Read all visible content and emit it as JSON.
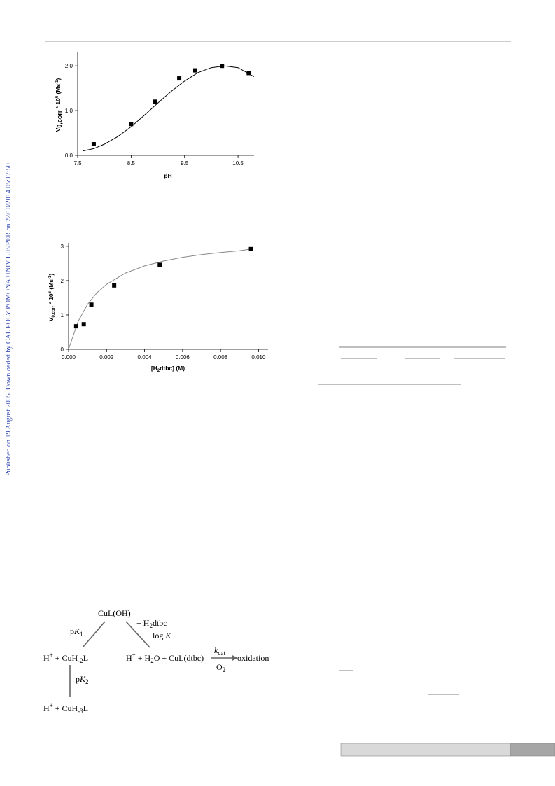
{
  "sidebar": "Published on 19 August 2005. Downloaded by CAL POLY POMONA UNIV LIB/PER on 22/10/2014 05:17:50.",
  "chart_data": [
    {
      "type": "scatter",
      "x_label": [
        "pH"
      ],
      "y_label": [
        "V",
        "0,corr",
        " * 10",
        "6",
        " (Ms",
        "-1",
        ")"
      ],
      "xlim": [
        7.5,
        10.8
      ],
      "xticks": [
        7.5,
        8.5,
        9.5,
        10.5
      ],
      "ylim": [
        0,
        2.3
      ],
      "yticks": [
        {
          "value": 0,
          "label": "0.0"
        },
        {
          "value": 1,
          "label": "1.0"
        },
        {
          "value": 2,
          "label": "2.0"
        }
      ],
      "series": [
        {
          "style": "marker",
          "color": "#000000",
          "x": [
            7.8,
            8.5,
            8.95,
            9.4,
            9.7,
            10.2,
            10.7
          ],
          "values": [
            0.25,
            0.7,
            1.2,
            1.72,
            1.9,
            2.0,
            1.84
          ]
        },
        {
          "style": "line",
          "color": "#000000",
          "x": [
            7.6,
            7.8,
            8.0,
            8.25,
            8.5,
            8.75,
            9.0,
            9.25,
            9.5,
            9.75,
            10.0,
            10.25,
            10.5,
            10.8
          ],
          "values": [
            0.1,
            0.15,
            0.25,
            0.42,
            0.64,
            0.9,
            1.17,
            1.43,
            1.66,
            1.85,
            1.96,
            2.0,
            1.96,
            1.76
          ]
        }
      ]
    },
    {
      "type": "scatter",
      "x_label": [
        "[H",
        "2",
        "dtbc] (M)"
      ],
      "y_label": [
        "V",
        "0,corr",
        " * 10",
        "6",
        " (Ms",
        "-1",
        ")"
      ],
      "xlim": [
        0,
        0.0105
      ],
      "xticks": [
        {
          "value": 0,
          "label": "0.000"
        },
        {
          "value": 0.002,
          "label": "0.002"
        },
        {
          "value": 0.004,
          "label": "0.004"
        },
        {
          "value": 0.006,
          "label": "0.006"
        },
        {
          "value": 0.008,
          "label": "0.008"
        },
        {
          "value": 0.01,
          "label": "0.010"
        }
      ],
      "ylim": [
        0,
        3.1
      ],
      "yticks": [
        0,
        1,
        2,
        3
      ],
      "series": [
        {
          "style": "line",
          "color": "#888888",
          "x": [
            0,
            0.0005,
            0.001,
            0.0015,
            0.002,
            0.003,
            0.004,
            0.005,
            0.006,
            0.007,
            0.008,
            0.009,
            0.0096
          ],
          "values": [
            0,
            0.81,
            1.31,
            1.65,
            1.89,
            2.22,
            2.43,
            2.57,
            2.68,
            2.76,
            2.82,
            2.87,
            2.92
          ]
        },
        {
          "style": "marker",
          "color": "#000000",
          "x": [
            0.0004,
            0.0008,
            0.0012,
            0.0024,
            0.0048,
            0.0096
          ],
          "values": [
            0.67,
            0.73,
            1.3,
            1.86,
            2.46,
            2.92
          ]
        }
      ]
    }
  ],
  "scheme": {
    "top": "CuL(OH)",
    "pk1": [
      "p",
      "K",
      "1"
    ],
    "add": [
      "+ H",
      "2",
      "dtbc"
    ],
    "logk": [
      "log ",
      "K"
    ],
    "left": [
      "H",
      "+",
      " + CuH",
      "-2",
      "L"
    ],
    "right": [
      "H",
      "+",
      " + H",
      "2",
      "O + CuL(dtbc)"
    ],
    "kcat": [
      "k",
      "cat"
    ],
    "o2": [
      "O",
      "2"
    ],
    "oxidation": "oxidation",
    "pk2": [
      "p",
      "K",
      "2"
    ],
    "bottom": [
      "H",
      "+",
      " + CuH",
      "-3",
      "L"
    ]
  }
}
